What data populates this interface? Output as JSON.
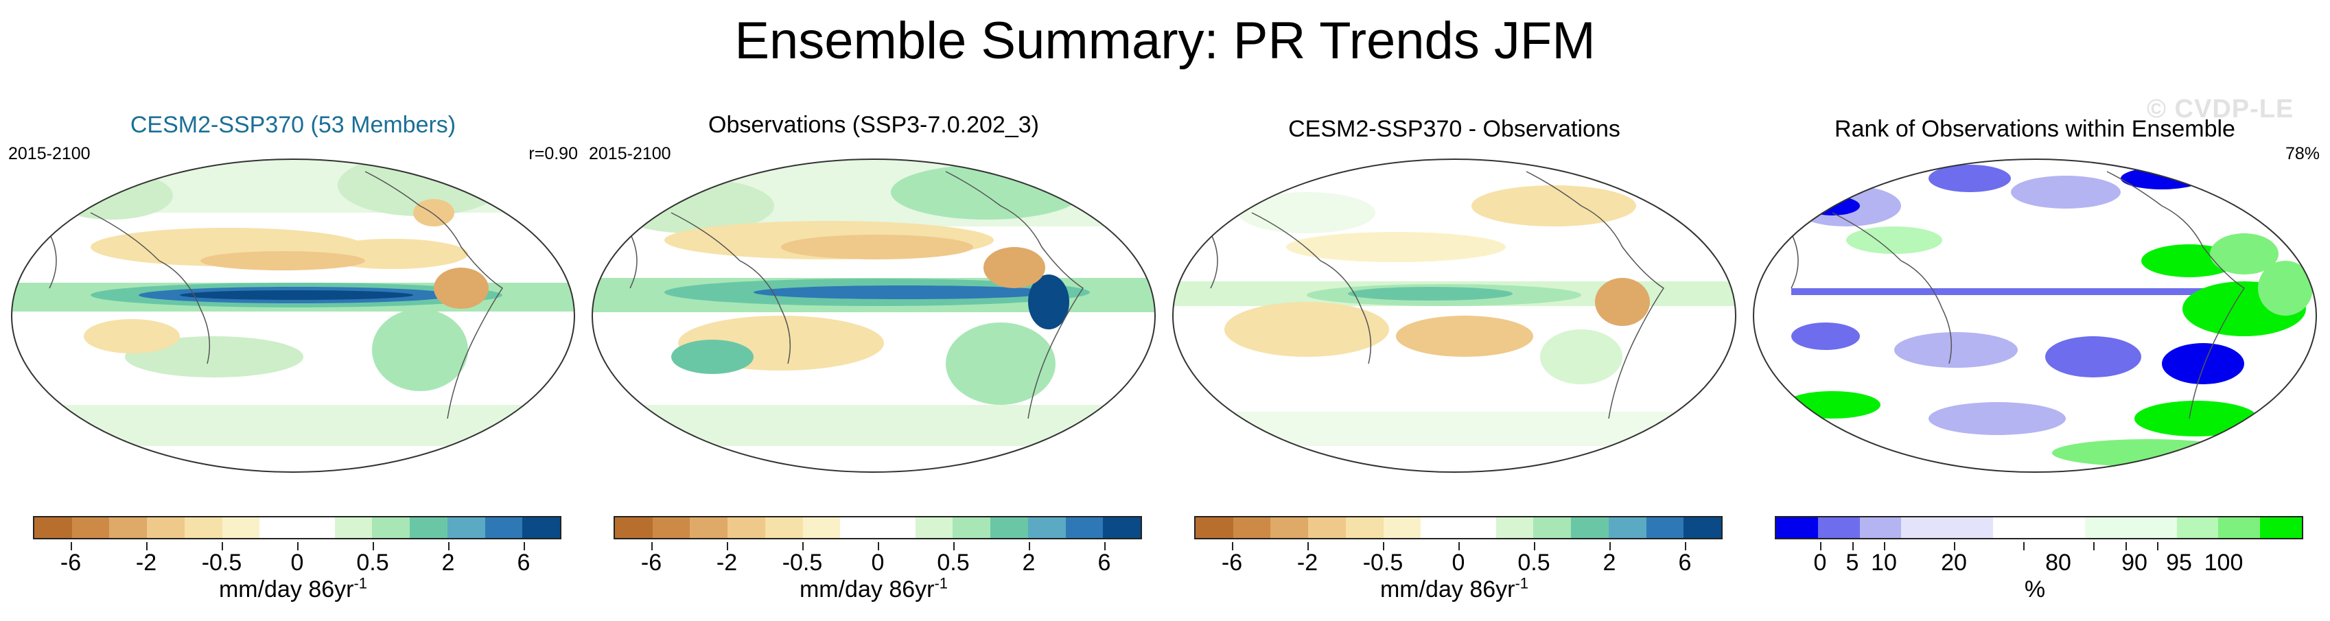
{
  "title": "Ensemble Summary: PR Trends JFM",
  "watermark": "© CVDP-LE",
  "colors": {
    "title_teal": "#1a6f96",
    "trend_scale": [
      "#b86f2e",
      "#cd8a46",
      "#dfa968",
      "#efc98a",
      "#f6e1a8",
      "#fbf1c8",
      "#ffffff",
      "#ffffff",
      "#d6f5d0",
      "#a8e6b6",
      "#6ac7a6",
      "#5ba9c3",
      "#2e78b5",
      "#0a4a86"
    ],
    "rank_scale": [
      "#0000ee",
      "#6d6dee",
      "#b4b4f2",
      "#e3e3fb",
      "#ffffff",
      "#e8fde8",
      "#b7f7b7",
      "#7ef07e",
      "#00f000"
    ]
  },
  "panels": [
    {
      "title": "CESM2-SSP370 (53 Members)",
      "period": "2015-2100",
      "stat": "r=0.90",
      "colorbar_ticks": [
        "-6",
        "-2",
        "-0.5",
        "0",
        "0.5",
        "2",
        "6"
      ],
      "units": "mm/day 86yr",
      "units_exp": "-1"
    },
    {
      "title": "Observations (SSP3-7.0.202_3)",
      "period": "2015-2100",
      "stat": "",
      "colorbar_ticks": [
        "-6",
        "-2",
        "-0.5",
        "0",
        "0.5",
        "2",
        "6"
      ],
      "units": "mm/day 86yr",
      "units_exp": "-1"
    },
    {
      "title": "CESM2-SSP370 - Observations",
      "period": "",
      "stat": "",
      "colorbar_ticks": [
        "-6",
        "-2",
        "-0.5",
        "0",
        "0.5",
        "2",
        "6"
      ],
      "units": "mm/day 86yr",
      "units_exp": "-1"
    },
    {
      "title": "Rank of Observations within Ensemble",
      "period": "",
      "stat": "78%",
      "colorbar_ticks": [
        "0",
        "5",
        "10",
        "20",
        "80",
        "90",
        "95",
        "100"
      ],
      "units": "%",
      "units_exp": ""
    }
  ]
}
